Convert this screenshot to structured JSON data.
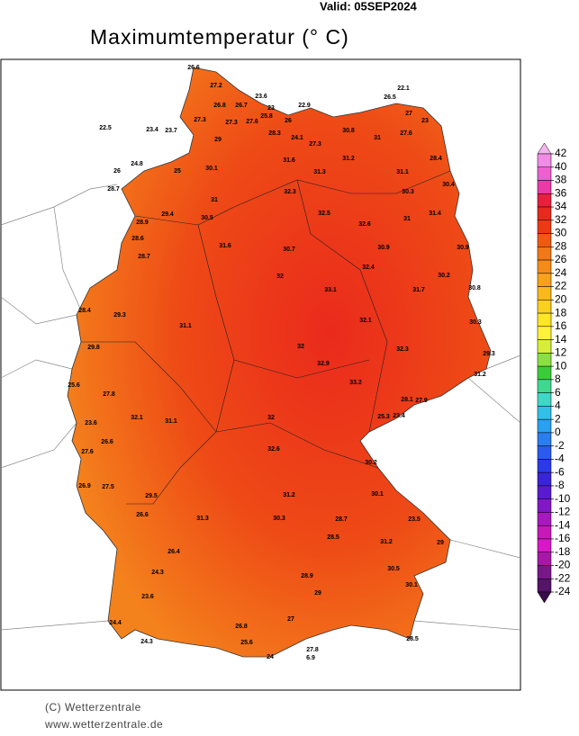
{
  "valid": "Valid:  05SEP2024",
  "title": "Maximumtemperatur (° C)",
  "footer": {
    "copyright": "(C) Wetterzentrale",
    "url": "www.wetterzentrale.de"
  },
  "legend": {
    "ticks": [
      42,
      40,
      38,
      36,
      34,
      32,
      30,
      28,
      26,
      24,
      22,
      20,
      18,
      16,
      14,
      12,
      10,
      8,
      6,
      4,
      2,
      0,
      -2,
      -4,
      -6,
      -8,
      -10,
      -12,
      -14,
      -16,
      -18,
      -20,
      -22,
      -24
    ],
    "colors": [
      "#f5b4f0",
      "#f08ce6",
      "#ee5fd0",
      "#ea3aa8",
      "#e8203e",
      "#e82a1e",
      "#ec3a14",
      "#f05a10",
      "#f27818",
      "#f58c1a",
      "#f7a21c",
      "#f9b81c",
      "#fbd020",
      "#fde626",
      "#fff23a",
      "#d6ee3a",
      "#8ae040",
      "#3ccc3a",
      "#40d890",
      "#3ed8c8",
      "#30c0e8",
      "#2aa0f0",
      "#2a7ef0",
      "#2a5af0",
      "#2a3ae8",
      "#3a24d8",
      "#5a1ad0",
      "#8018c8",
      "#a818c0",
      "#c818b8",
      "#d818c8",
      "#a818a8",
      "#781888",
      "#541468",
      "#3a0c4a"
    ]
  },
  "stations": [
    26.6,
    27.2,
    26.8,
    26.7,
    23.6,
    23.0,
    22.9,
    27.3,
    27.3,
    27.6,
    25.8,
    26.0,
    22.5,
    23.4,
    23.7,
    22.1,
    26.5,
    27.0,
    23.0,
    30.8,
    29.0,
    28.3,
    24.1,
    27.3,
    31.0,
    27.6,
    26.0,
    24.8,
    25.0,
    28.7,
    30.1,
    31.6,
    31.2,
    31.3,
    31.1,
    28.4,
    31.0,
    32.3,
    30.3,
    30.4,
    28.9,
    29.4,
    30.5,
    32.5,
    32.6,
    31.0,
    31.4,
    28.6,
    31.6,
    30.7,
    30.9,
    30.9,
    28.7,
    32.0,
    32.4,
    30.2,
    29.3,
    33.1,
    31.7,
    30.8,
    28.4,
    31.1,
    32.1,
    30.3,
    29.8,
    32.0,
    32.3,
    29.3,
    25.6,
    32.9,
    31.2,
    27.8,
    33.2,
    28.1,
    27.9,
    23.6,
    32.1,
    31.1,
    32.0,
    25.3,
    23.4,
    27.6,
    26.6,
    32.6,
    30.2,
    26.9,
    27.5,
    29.5,
    31.2,
    30.1,
    26.6,
    31.3,
    30.3,
    28.7,
    23.5,
    29.0,
    26.4,
    28.5,
    31.2,
    24.3,
    28.9,
    30.5,
    30.1,
    23.6,
    29.0,
    24.4,
    27.0,
    26.8,
    28.5,
    24.3,
    25.6,
    24.0,
    27.8,
    6.9
  ]
}
